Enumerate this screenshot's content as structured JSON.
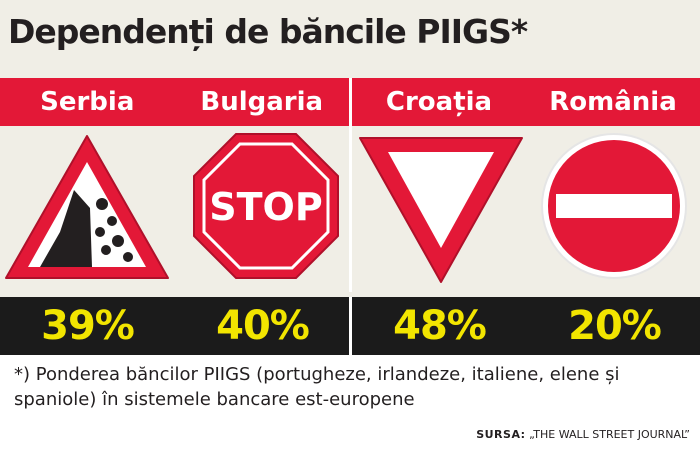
{
  "title": "Dependenți de băncile PIIGS*",
  "countries": [
    {
      "name": "Serbia",
      "percent": "39%",
      "sign": "falling-rocks-sign-icon"
    },
    {
      "name": "Bulgaria",
      "percent": "40%",
      "sign": "stop-sign-icon",
      "sign_text": "STOP"
    },
    {
      "name": "Croația",
      "percent": "48%",
      "sign": "yield-sign-icon"
    },
    {
      "name": "România",
      "percent": "20%",
      "sign": "no-entry-sign-icon"
    }
  ],
  "footnote": "*) Ponderea băncilor PIIGS (portugheze, irlandeze, italiene, elene și spaniole) în sistemele bancare est-europene",
  "source": {
    "label": "SURSA:",
    "text": " „THE WALL STREET JOURNAL”"
  },
  "colors": {
    "accent_red": "#e31837",
    "percent_yellow": "#f2e500",
    "dark_band": "#1b1b1b",
    "background": "#f0eee6"
  }
}
